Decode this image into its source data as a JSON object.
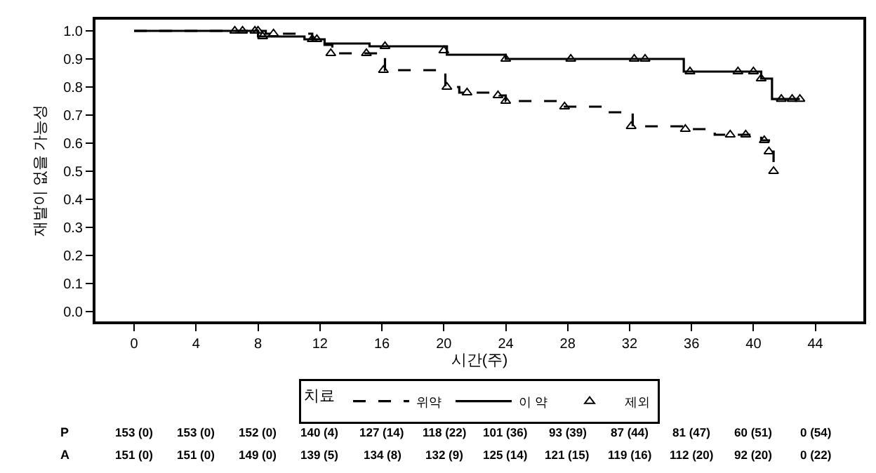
{
  "chart_data": {
    "type": "step",
    "xlabel": "시간(주)",
    "ylabel": "재발이 없을 가능성",
    "legend_title": "치료",
    "legend": "bottom",
    "xlim": [
      -2.5,
      47.1
    ],
    "ylim": [
      -0.035,
      1.04
    ],
    "xticks": [
      0,
      4,
      8,
      12,
      16,
      20,
      24,
      28,
      32,
      36,
      40,
      44
    ],
    "yticks": [
      {
        "value": 0,
        "label": "0.0"
      },
      0.1,
      0.2,
      0.3,
      0.4,
      0.5,
      0.6,
      0.7,
      0.8,
      0.9,
      {
        "value": 1,
        "label": "1.0"
      }
    ],
    "series": [
      {
        "name": "위약",
        "color": "#000000",
        "line_style": "dashed",
        "marker": "none",
        "x": [
          0,
          8.5,
          11.5,
          12.3,
          12.8,
          16.2,
          20.1,
          21,
          23.6,
          24,
          27.5,
          30.5,
          32.2,
          35.5,
          37.5,
          40.5,
          41,
          41.3
        ],
        "values": [
          1.0,
          0.99,
          0.97,
          0.95,
          0.92,
          0.86,
          0.8,
          0.78,
          0.77,
          0.75,
          0.73,
          0.71,
          0.66,
          0.65,
          0.63,
          0.61,
          0.57,
          0.5
        ]
      },
      {
        "name": "이 약",
        "color": "#000000",
        "line_style": "solid",
        "marker": "none",
        "x": [
          0,
          8,
          11,
          12.3,
          15.2,
          20.2,
          24,
          35.5,
          40.5,
          41.2,
          43
        ],
        "values": [
          1.0,
          0.98,
          0.97,
          0.955,
          0.945,
          0.915,
          0.9,
          0.855,
          0.83,
          0.757,
          0.757
        ]
      },
      {
        "name": "제외",
        "type": "scatter",
        "color": "#000000",
        "marker": "triangle",
        "x": [
          6.5,
          7,
          7.8,
          8.3,
          11.5,
          16.2,
          20,
          24,
          28.2,
          32.3,
          33,
          35.9,
          39,
          40,
          40.5,
          41.8,
          42.5,
          43,
          8,
          9,
          11.8,
          12.7,
          15,
          16.1,
          20.2,
          21.5,
          23.5,
          24,
          27.8,
          32.1,
          35.6,
          38.5,
          39.5,
          40.7,
          41,
          41.3
        ],
        "values": [
          1.0,
          1.0,
          1.0,
          0.98,
          0.97,
          0.945,
          0.93,
          0.9,
          0.9,
          0.9,
          0.9,
          0.855,
          0.855,
          0.855,
          0.83,
          0.757,
          0.757,
          0.757,
          1.0,
          0.99,
          0.97,
          0.92,
          0.92,
          0.86,
          0.8,
          0.78,
          0.77,
          0.75,
          0.73,
          0.66,
          0.65,
          0.63,
          0.63,
          0.61,
          0.57,
          0.5
        ]
      }
    ],
    "annotations": [
      "P",
      "153 (0)",
      "153 (0)",
      "152 (0)",
      "140 (4)",
      "127 (14)",
      "118 (22)",
      "101 (36)",
      "93 (39)",
      "87 (44)",
      "81 (47)",
      "60 (51)",
      "0 (54)",
      "A",
      "151 (0)",
      "151 (0)",
      "149 (0)",
      "139 (5)",
      "134 (8)",
      "132 (9)",
      "125 (14)",
      "121 (15)",
      "119 (16)",
      "112 (20)",
      "92 (20)",
      "0 (22)"
    ]
  }
}
